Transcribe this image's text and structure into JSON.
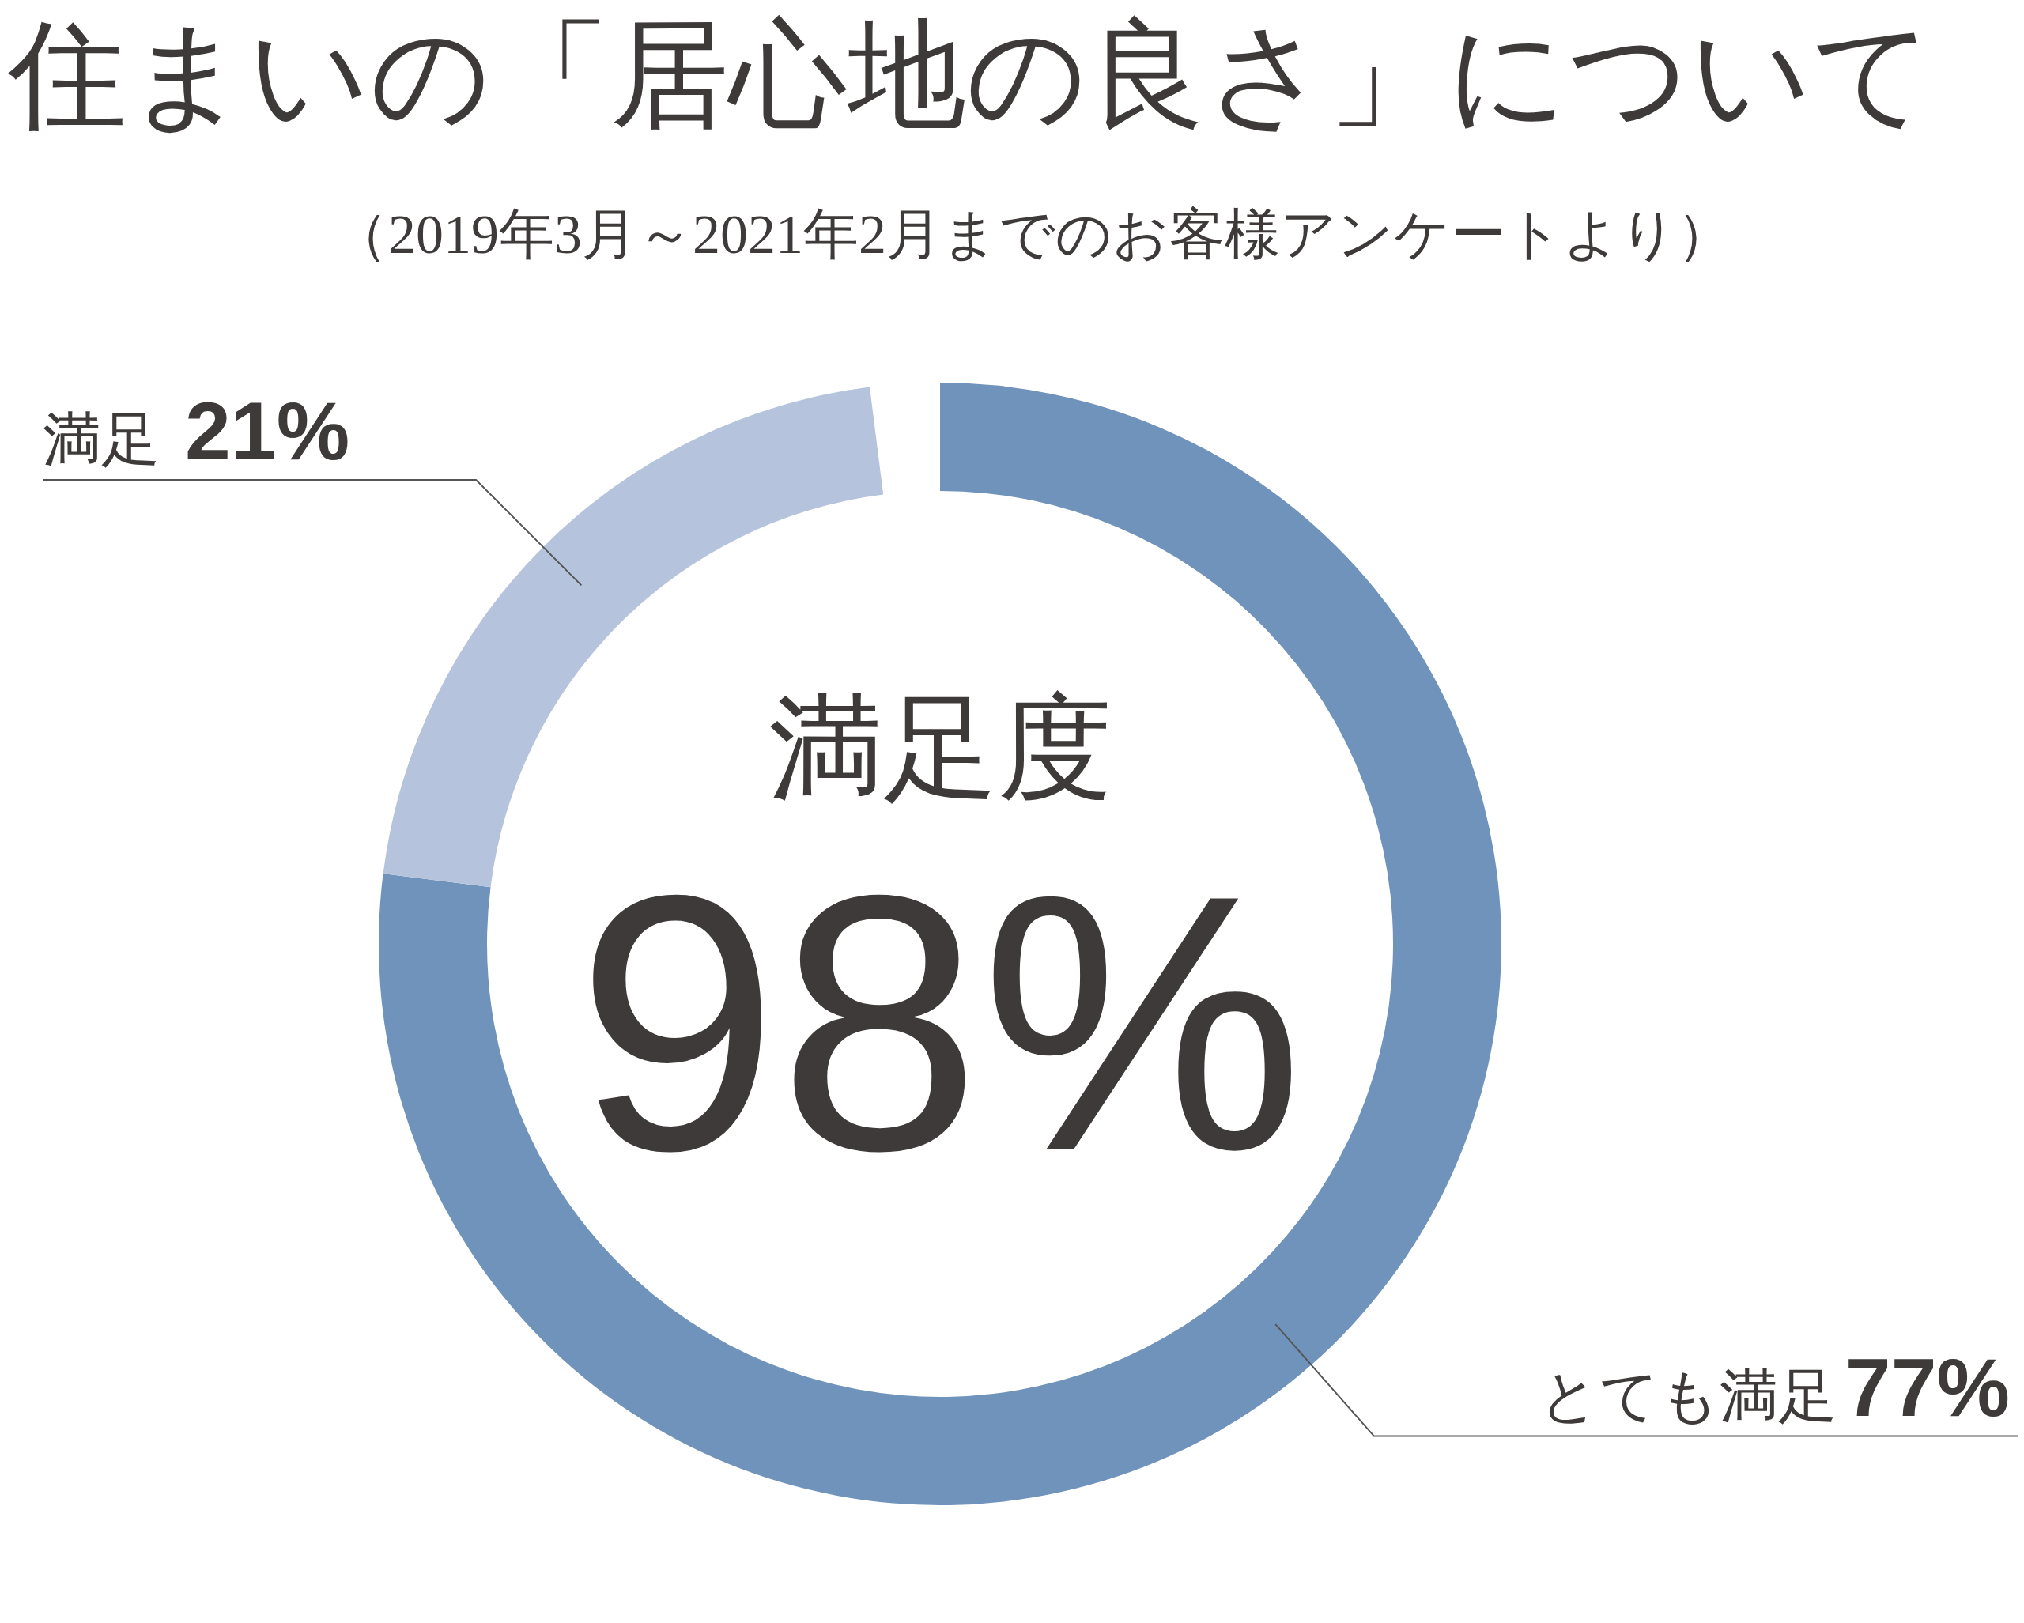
{
  "chart_data": {
    "type": "donut",
    "title": "住まいの「居心地の良さ」について",
    "subtitle": "（2019年3月～2021年2月までのお客様アンケートより）",
    "categories": [
      "とても満足",
      "満足"
    ],
    "values": [
      77,
      21
    ],
    "colors": [
      "#6f93bb",
      "#b5c4dc"
    ],
    "value_labels": [
      "77%",
      "21%"
    ],
    "annotations": [
      "満足度",
      "98%"
    ]
  }
}
